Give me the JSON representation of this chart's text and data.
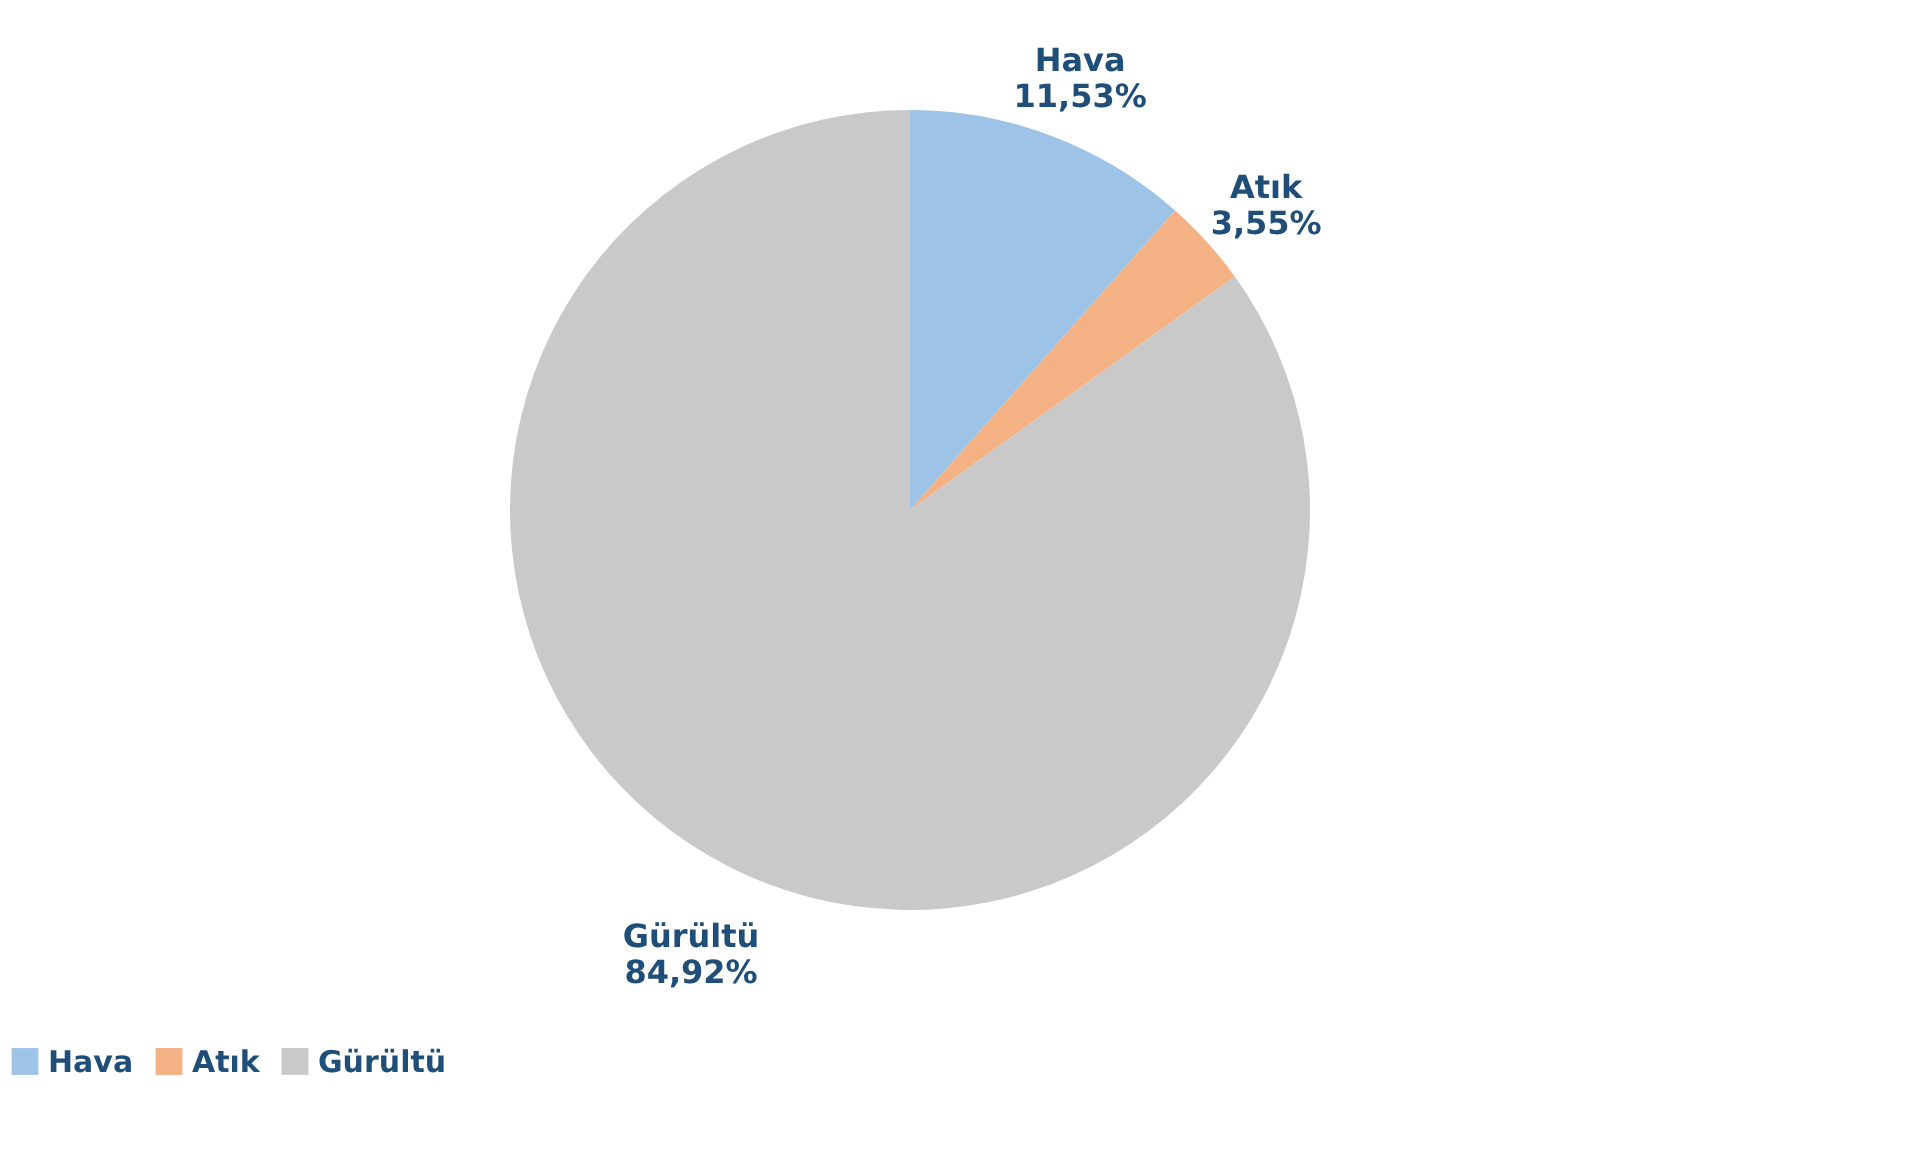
{
  "chart_data": {
    "type": "pie",
    "categories": [
      "Hava",
      "Atık",
      "Gürültü"
    ],
    "values": [
      11.53,
      3.55,
      84.92
    ],
    "colors": [
      "#9dc3e6",
      "#f4b183",
      "#c9c9c9"
    ],
    "value_labels": [
      "11,53%",
      "3,55%",
      "84,92%"
    ],
    "legend": "bottom"
  }
}
